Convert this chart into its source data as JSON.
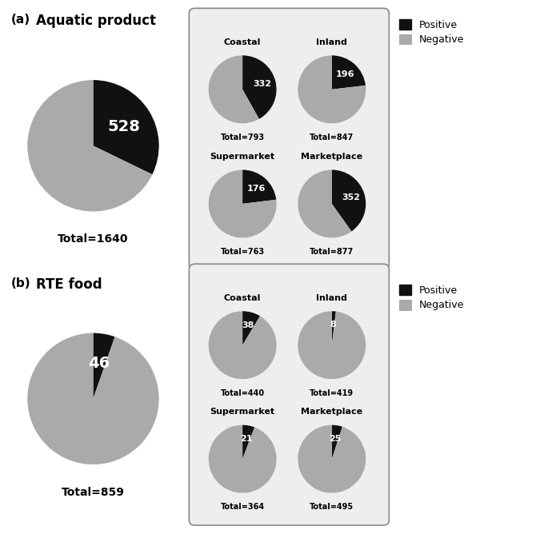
{
  "panel_a": {
    "label": "(a)",
    "title": "Aquatic product",
    "total": 1640,
    "positive": 528,
    "subplots": [
      {
        "title": "Coastal",
        "positive": 332,
        "total": 793
      },
      {
        "title": "Inland",
        "positive": 196,
        "total": 847
      },
      {
        "title": "Supermarket",
        "positive": 176,
        "total": 763
      },
      {
        "title": "Marketplace",
        "positive": 352,
        "total": 877
      }
    ]
  },
  "panel_b": {
    "label": "(b)",
    "title": "RTE food",
    "total": 859,
    "positive": 46,
    "subplots": [
      {
        "title": "Coastal",
        "positive": 38,
        "total": 440
      },
      {
        "title": "Inland",
        "positive": 8,
        "total": 419
      },
      {
        "title": "Supermarket",
        "positive": 21,
        "total": 364
      },
      {
        "title": "Marketplace",
        "positive": 25,
        "total": 495
      }
    ]
  },
  "colors": {
    "positive": "#111111",
    "negative": "#aaaaaa"
  }
}
